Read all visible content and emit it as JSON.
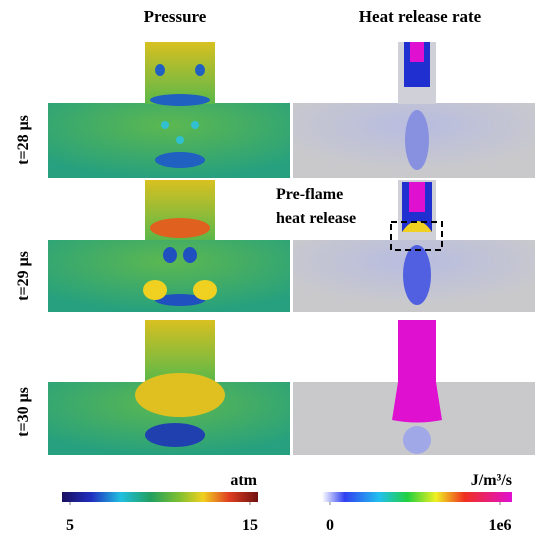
{
  "columns": [
    "Pressure",
    "Heat release rate"
  ],
  "rows": [
    "t=28 μs",
    "t=29 μs",
    "t=30 μs"
  ],
  "annotation": [
    "Pre-flame",
    "heat release"
  ],
  "colorbars": [
    {
      "unit": "atm",
      "ticks": [
        5,
        15
      ]
    },
    {
      "unit": "J/m³/s",
      "ticks": [
        0,
        {
          "value": 1000000,
          "label": "1e6"
        }
      ]
    }
  ]
}
